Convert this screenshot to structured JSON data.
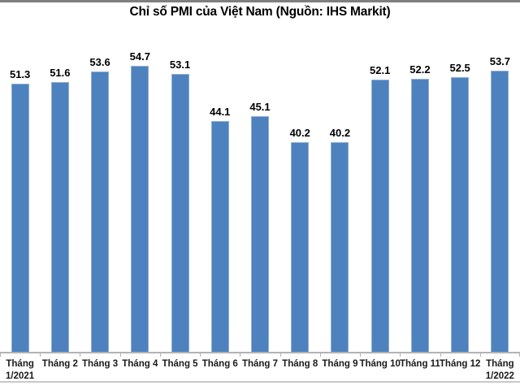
{
  "chart_data": {
    "type": "bar",
    "title": "Chỉ số PMI của Việt Nam (Nguồn: IHS Markit)",
    "categories": [
      "Tháng 1/2021",
      "Tháng 2",
      "Tháng 3",
      "Tháng 4",
      "Tháng 5",
      "Tháng 6",
      "Tháng 7",
      "Tháng 8",
      "Tháng 9",
      "Tháng 10",
      "Tháng 11",
      "Tháng 12",
      "Tháng 1/2022"
    ],
    "x_tick_labels": [
      [
        "Tháng",
        "1/2021"
      ],
      [
        "Tháng 2"
      ],
      [
        "Tháng 3"
      ],
      [
        "Tháng 4"
      ],
      [
        "Tháng 5"
      ],
      [
        "Tháng 6"
      ],
      [
        "Tháng 7"
      ],
      [
        "Tháng 8"
      ],
      [
        "Tháng 9"
      ],
      [
        "Tháng 10"
      ],
      [
        "Tháng 11"
      ],
      [
        "Tháng 12"
      ],
      [
        "Tháng",
        "1/2022"
      ]
    ],
    "values": [
      51.3,
      51.6,
      53.6,
      54.7,
      53.1,
      44.1,
      45.1,
      40.2,
      40.2,
      52.1,
      52.2,
      52.5,
      53.7
    ],
    "data_labels": [
      "51.3",
      "51.6",
      "53.6",
      "54.7",
      "53.1",
      "44.1",
      "45.1",
      "40.2",
      "40.2",
      "52.1",
      "52.2",
      "52.5",
      "53.7"
    ],
    "xlabel": "",
    "ylabel": "",
    "ylim": [
      0,
      58
    ],
    "gridlines": false,
    "legend": "none",
    "y_axis_visible": false,
    "bar_color": "#4d82be",
    "bar_border_color": "#8fadd6",
    "axis_color": "#b3b3b3",
    "title_color": "#000000",
    "label_color": "#000000",
    "top_rule_color": "#7f7f7f",
    "bottom_rule_color": "#c9c9c9"
  }
}
